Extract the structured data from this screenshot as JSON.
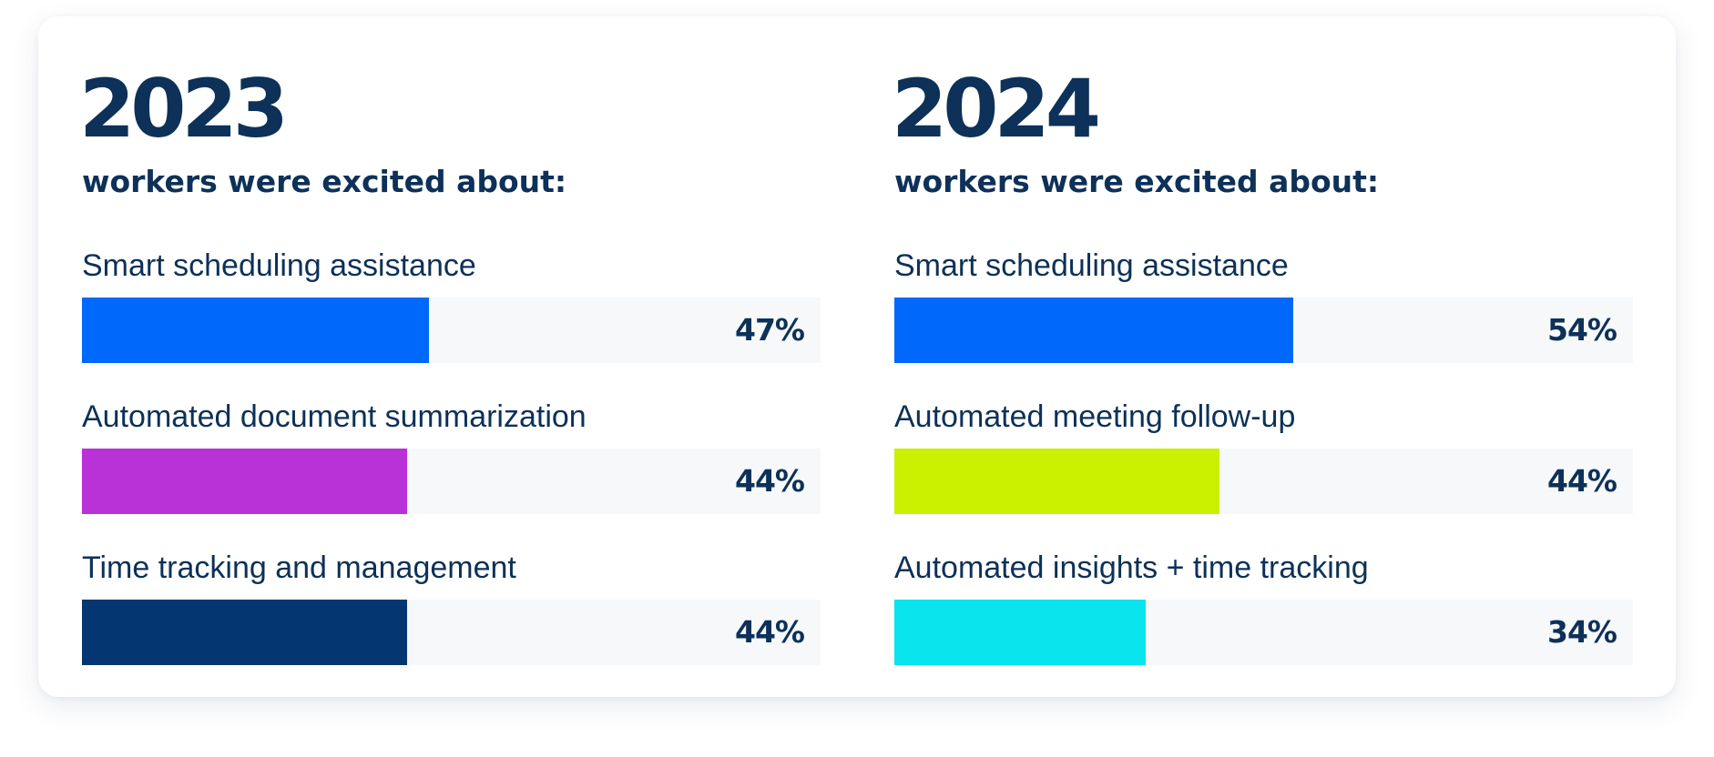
{
  "chart_data": [
    {
      "type": "bar",
      "orientation": "horizontal",
      "title": "2023",
      "subtitle": "workers were excited about:",
      "xlim": [
        0,
        100
      ],
      "unit": "%",
      "categories": [
        "Smart scheduling assistance",
        "Automated document summarization",
        "Time tracking and management"
      ],
      "values": [
        47,
        44,
        44
      ],
      "value_labels": [
        "47%",
        "44%",
        "44%"
      ],
      "colors": [
        "#0068fa",
        "#b932d7",
        "#043672"
      ]
    },
    {
      "type": "bar",
      "orientation": "horizontal",
      "title": "2024",
      "subtitle": "workers were excited about:",
      "xlim": [
        0,
        100
      ],
      "unit": "%",
      "categories": [
        "Smart scheduling assistance",
        "Automated meeting follow-up",
        "Automated insights + time tracking"
      ],
      "values": [
        54,
        44,
        34
      ],
      "value_labels": [
        "54%",
        "44%",
        "34%"
      ],
      "colors": [
        "#0068fa",
        "#cbf000",
        "#0ae4ed"
      ]
    }
  ],
  "theme": {
    "text_color": "#0d3158",
    "track_color": "#f6f8fa",
    "card_background": "#ffffff"
  }
}
